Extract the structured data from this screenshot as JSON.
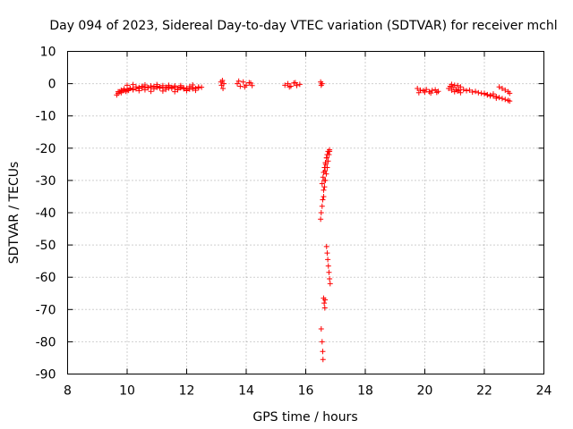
{
  "chart_data": {
    "type": "scatter",
    "title": "Day 094 of 2023, Sidereal Day-to-day VTEC variation (SDTVAR) for receiver mchl",
    "xlabel": "GPS time / hours",
    "ylabel": "SDTVAR / TECUs",
    "xlim": [
      8,
      24
    ],
    "ylim": [
      -90,
      10
    ],
    "xticks": [
      8,
      10,
      12,
      14,
      16,
      18,
      20,
      22,
      24
    ],
    "yticks": [
      10,
      0,
      -10,
      -20,
      -30,
      -40,
      -50,
      -60,
      -70,
      -80,
      -90
    ],
    "grid": true,
    "marker": "+",
    "series": [
      {
        "name": "SDTVAR",
        "color": "#ff0000",
        "x": [
          9.65,
          9.7,
          9.75,
          9.8,
          9.85,
          9.9,
          9.95,
          10.0,
          10.05,
          10.1,
          10.2,
          10.3,
          10.4,
          10.5,
          10.6,
          10.7,
          10.8,
          10.9,
          11.0,
          11.1,
          11.2,
          11.3,
          11.4,
          11.5,
          11.6,
          11.7,
          11.8,
          11.9,
          12.0,
          12.1,
          12.2,
          12.3,
          12.4,
          12.5,
          9.7,
          9.8,
          9.9,
          10.0,
          10.1,
          10.2,
          10.3,
          10.4,
          10.5,
          10.6,
          10.7,
          10.8,
          10.9,
          11.0,
          11.1,
          11.2,
          11.3,
          11.4,
          11.5,
          11.6,
          11.7,
          11.8,
          11.9,
          12.0,
          12.1,
          12.2,
          12.3,
          12.4,
          10.0,
          10.2,
          10.4,
          10.6,
          10.8,
          11.0,
          11.2,
          11.4,
          11.6,
          11.8,
          12.0,
          12.2,
          13.15,
          13.17,
          13.2,
          13.22,
          13.25,
          13.7,
          13.8,
          13.9,
          14.0,
          14.1,
          14.2,
          13.75,
          13.95,
          14.15,
          15.3,
          15.4,
          15.5,
          15.6,
          15.7,
          15.8,
          15.45,
          15.65,
          16.5,
          16.52,
          16.55,
          16.5,
          16.52,
          16.55,
          16.57,
          16.6,
          16.62,
          16.65,
          16.67,
          16.7,
          16.72,
          16.75,
          16.8,
          16.6,
          16.63,
          16.66,
          16.69,
          16.72,
          16.75,
          16.78,
          16.8,
          16.55,
          16.58,
          16.6,
          16.63,
          16.66,
          16.7,
          16.7,
          16.72,
          16.74,
          16.76,
          16.78,
          16.8,
          16.82,
          16.6,
          16.62,
          16.64,
          16.65,
          16.52,
          16.55,
          16.57,
          16.58,
          19.75,
          19.85,
          19.95,
          20.05,
          20.15,
          20.25,
          20.35,
          20.45,
          19.8,
          20.0,
          20.2,
          20.4,
          20.8,
          20.85,
          20.9,
          20.95,
          21.0,
          21.05,
          21.1,
          21.15,
          21.2,
          21.3,
          21.4,
          21.5,
          21.6,
          21.7,
          21.8,
          21.9,
          22.0,
          22.1,
          22.2,
          22.3,
          22.4,
          22.5,
          22.6,
          22.7,
          22.8,
          22.85,
          20.9,
          21.0,
          21.1,
          21.2,
          22.0,
          22.1,
          22.2,
          22.3,
          22.4,
          22.5,
          22.6,
          22.7,
          22.8,
          22.85
        ],
        "y": [
          -3.5,
          -3.0,
          -2.5,
          -2.8,
          -2.2,
          -2.0,
          -2.4,
          -1.8,
          -2.1,
          -1.5,
          -1.9,
          -1.6,
          -1.2,
          -1.4,
          -1.0,
          -1.3,
          -1.1,
          -0.9,
          -1.2,
          -1.0,
          -1.3,
          -1.1,
          -1.4,
          -1.2,
          -1.0,
          -1.5,
          -1.3,
          -1.6,
          -1.4,
          -1.7,
          -1.2,
          -1.5,
          -1.3,
          -1.1,
          -2.5,
          -2.0,
          -1.6,
          -2.2,
          -1.4,
          -1.7,
          -1.0,
          -1.5,
          -0.8,
          -1.9,
          -1.2,
          -0.7,
          -1.6,
          -0.8,
          -1.4,
          -0.6,
          -1.8,
          -0.9,
          -1.5,
          -0.7,
          -1.9,
          -1.0,
          -1.3,
          -2.0,
          -0.9,
          -1.6,
          -2.1,
          -1.0,
          -0.5,
          -0.3,
          -2.2,
          -0.4,
          -2.4,
          -0.3,
          -2.3,
          -0.5,
          -2.5,
          -0.6,
          -2.2,
          -0.4,
          0.5,
          -0.5,
          1.0,
          -1.5,
          0.0,
          0.0,
          -0.8,
          0.5,
          -0.5,
          0.3,
          -0.6,
          0.8,
          -1.0,
          0.2,
          -0.5,
          0.0,
          -0.8,
          0.2,
          -0.6,
          -0.2,
          -1.0,
          0.3,
          0.5,
          -0.5,
          0.0,
          -42.0,
          -40.0,
          -38.0,
          -36.0,
          -33.0,
          -30.0,
          -27.0,
          -25.0,
          -23.0,
          -22.0,
          -21.0,
          -20.5,
          -35.0,
          -32.0,
          -30.0,
          -28.0,
          -26.0,
          -24.0,
          -22.0,
          -21.0,
          -31.0,
          -29.0,
          -27.5,
          -26.0,
          -24.5,
          -23.0,
          -50.5,
          -52.5,
          -54.5,
          -56.5,
          -58.5,
          -60.5,
          -62.0,
          -66.5,
          -68.0,
          -69.5,
          -67.0,
          -76.0,
          -80.0,
          -83.0,
          -85.5,
          -1.5,
          -2.0,
          -2.2,
          -1.8,
          -2.5,
          -2.1,
          -1.9,
          -2.4,
          -2.8,
          -2.6,
          -2.9,
          -2.7,
          -1.5,
          -0.8,
          -0.2,
          -1.2,
          -0.5,
          -1.8,
          -0.6,
          -2.0,
          -1.0,
          -1.8,
          -2.2,
          -2.0,
          -2.6,
          -2.4,
          -2.8,
          -3.0,
          -3.2,
          -3.4,
          -3.6,
          -3.8,
          -4.0,
          -4.3,
          -4.6,
          -4.9,
          -5.2,
          -5.4,
          -2.0,
          -2.5,
          -2.3,
          -2.8,
          -3.0,
          -3.5,
          -3.8,
          -3.2,
          -4.5,
          -1.0,
          -1.5,
          -2.0,
          -2.5,
          -3.0
        ]
      }
    ]
  }
}
